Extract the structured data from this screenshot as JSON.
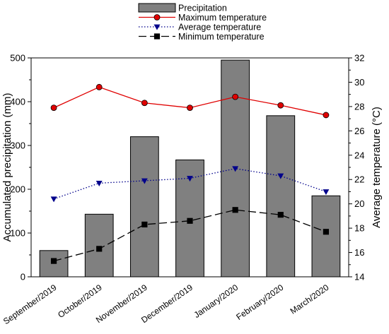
{
  "chart_data": {
    "type": "bar",
    "categories": [
      "September/2019",
      "October/2019",
      "November/2019",
      "December/2019",
      "January/2020",
      "February/2020",
      "March/2020"
    ],
    "series": [
      {
        "name": "Precipitation",
        "kind": "bar",
        "axis": "left",
        "color": "#808080",
        "values": [
          60,
          143,
          320,
          267,
          495,
          368,
          185
        ]
      },
      {
        "name": "Maximum temperature",
        "kind": "line",
        "axis": "right",
        "color": "#e00000",
        "marker": "circle",
        "line_style": "solid",
        "values": [
          27.9,
          29.6,
          28.3,
          27.9,
          28.8,
          28.1,
          27.3
        ]
      },
      {
        "name": "Average temperature",
        "kind": "line",
        "axis": "right",
        "color": "#00008b",
        "marker": "triangle-down",
        "line_style": "dotted",
        "values": [
          20.4,
          21.7,
          21.9,
          22.1,
          22.9,
          22.3,
          21.0
        ]
      },
      {
        "name": "Minimum temperature",
        "kind": "line",
        "axis": "right",
        "color": "#000000",
        "marker": "square",
        "line_style": "dashed",
        "values": [
          15.3,
          16.3,
          18.3,
          18.6,
          19.5,
          19.1,
          17.7
        ]
      }
    ],
    "ylabel": "Accumulated precipitation (mm)",
    "y2label": "Average temperature (°C)",
    "ylim": [
      0,
      500
    ],
    "y2lim": [
      14,
      32
    ],
    "yticks": [
      "0",
      "100",
      "200",
      "300",
      "400",
      "500"
    ],
    "y2ticks": [
      "14",
      "16",
      "18",
      "20",
      "22",
      "24",
      "26",
      "28",
      "30",
      "32"
    ],
    "legend_position": "top-center",
    "grid": false
  }
}
